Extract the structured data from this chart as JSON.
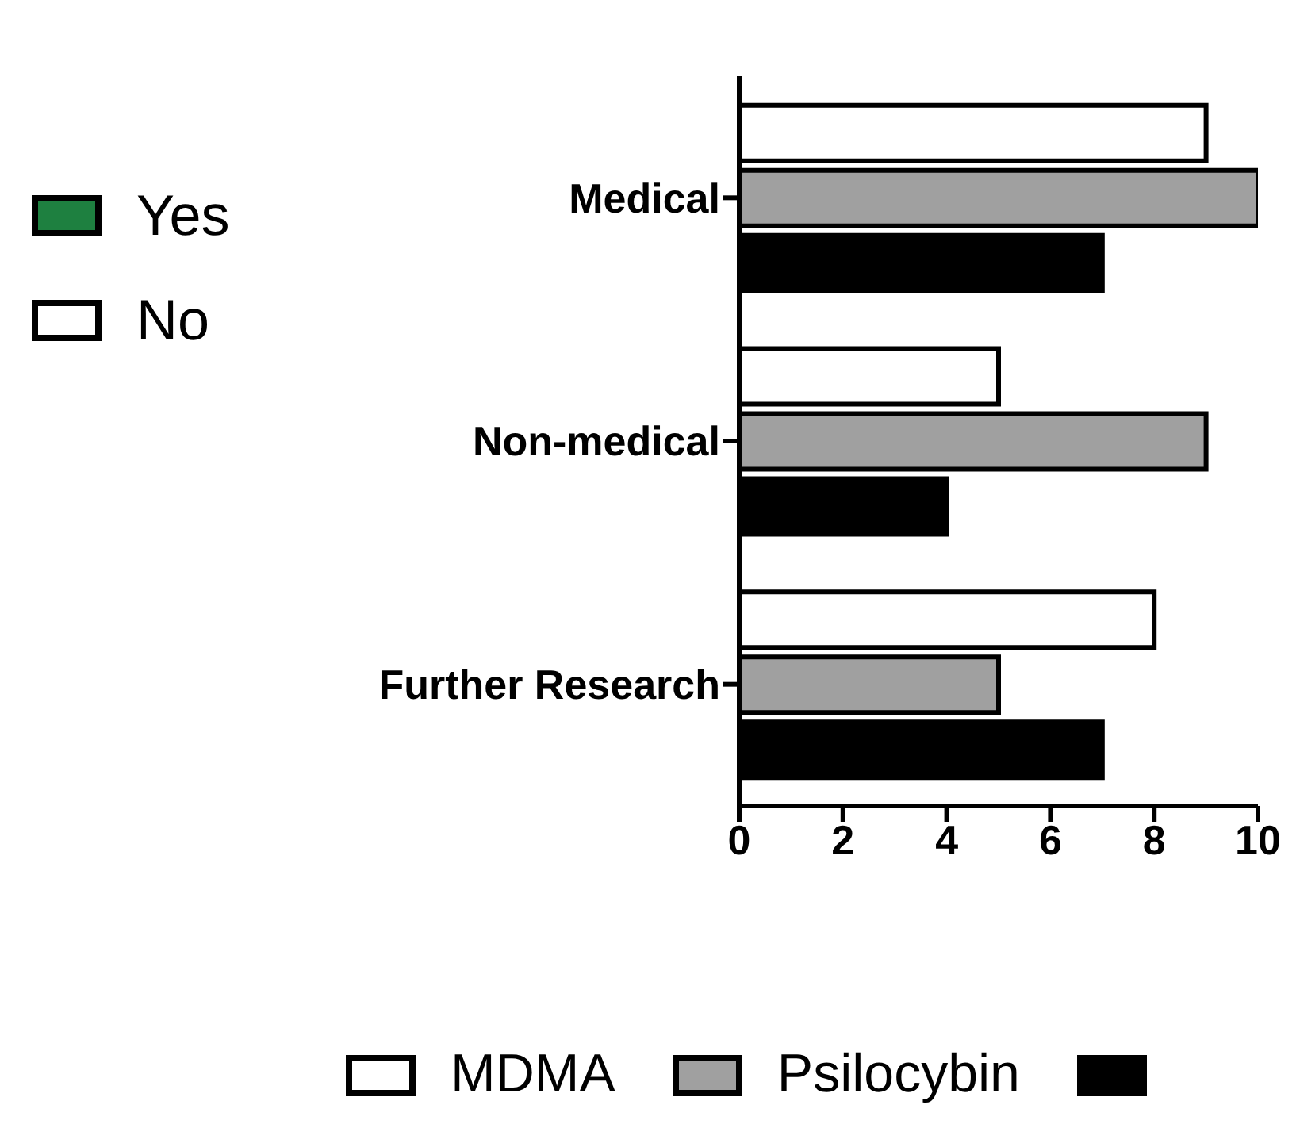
{
  "chart_data": {
    "type": "bar",
    "orientation": "horizontal",
    "categories": [
      "Medical",
      "Non-medical",
      "Further Research"
    ],
    "series": [
      {
        "name": "Yes",
        "color": "#1e8040",
        "values": [
          null,
          null,
          null
        ]
      },
      {
        "name": "No",
        "color": "#ffffff",
        "values": [
          null,
          null,
          null
        ]
      },
      {
        "name": "MDMA",
        "color": "#ffffff",
        "values": [
          9,
          5,
          8
        ]
      },
      {
        "name": "Psilocybin",
        "color": "#a0a0a0",
        "values": [
          10,
          9,
          5
        ]
      },
      {
        "color": "#000000",
        "values": [
          7,
          4,
          7
        ]
      }
    ],
    "xlim": [
      0,
      10
    ],
    "xticks": [
      0,
      2,
      4,
      6,
      8,
      10
    ],
    "legend": "bottom"
  }
}
